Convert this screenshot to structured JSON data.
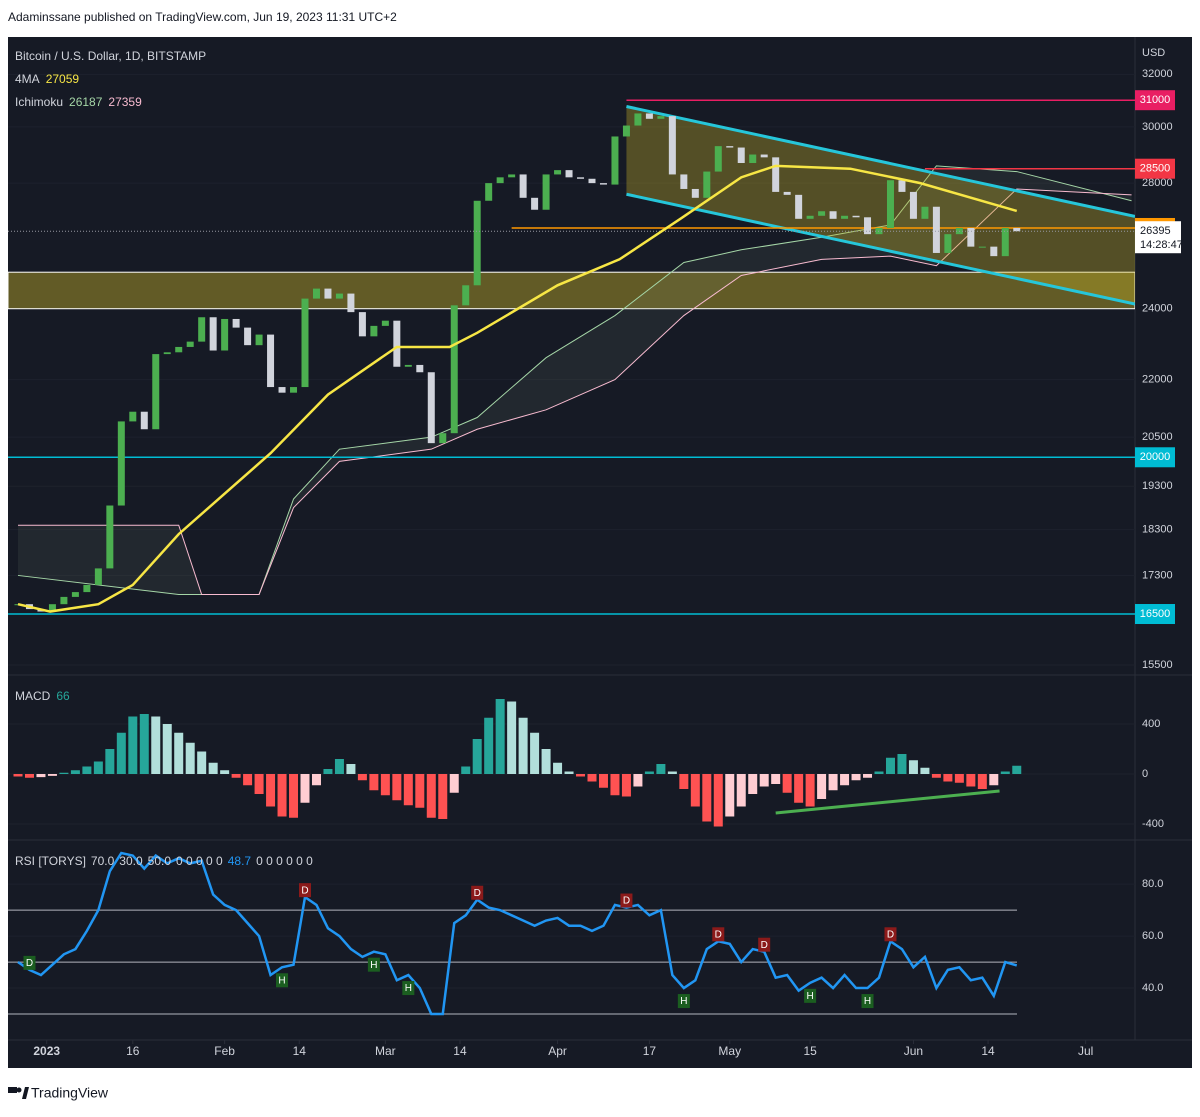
{
  "header": {
    "published": "Adaminssane published on TradingView.com, Jun 19, 2023 11:31 UTC+2"
  },
  "footer": {
    "brand": "TradingView"
  },
  "chart_data": [
    {
      "type": "candlestick",
      "title": "Bitcoin / U.S. Dollar, 1D, BITSTAMP",
      "currency": "USD",
      "countdown": "14:28:47",
      "log_scale": true,
      "ylim": [
        15310,
        33500
      ],
      "yticks": [
        32000,
        30000,
        28000,
        24000,
        22000,
        20500,
        19300,
        18300,
        17300,
        16500,
        15500
      ],
      "xlim": [
        -1.5,
        97.3
      ],
      "xticks": [
        {
          "value": 2.5,
          "label": "2023"
        },
        {
          "value": 10,
          "label": "16"
        },
        {
          "value": 18,
          "label": "Feb"
        },
        {
          "value": 24.5,
          "label": "14"
        },
        {
          "value": 32,
          "label": "Mar"
        },
        {
          "value": 38.5,
          "label": "14"
        },
        {
          "value": 47,
          "label": "Apr"
        },
        {
          "value": 55,
          "label": "17"
        },
        {
          "value": 62,
          "label": "May"
        },
        {
          "value": 69,
          "label": "15"
        },
        {
          "value": 78,
          "label": "Jun"
        },
        {
          "value": 84.5,
          "label": "14"
        },
        {
          "value": 93,
          "label": "Jul"
        }
      ],
      "up_color": "#4caf50",
      "down_color": "#d1d4dc",
      "close": [
        16700,
        16600,
        16550,
        16700,
        16850,
        16950,
        17100,
        17450,
        18850,
        20900,
        21150,
        20700,
        22700,
        22750,
        22900,
        23050,
        23750,
        22800,
        23700,
        23450,
        22950,
        23250,
        21800,
        21650,
        21800,
        24300,
        24600,
        24300,
        24450,
        23900,
        23200,
        23500,
        23650,
        22350,
        22400,
        22200,
        20350,
        20600,
        24100,
        24700,
        27400,
        28000,
        28200,
        28300,
        27500,
        27100,
        28300,
        28450,
        28200,
        28150,
        28000,
        27950,
        29650,
        30050,
        30500,
        30300,
        30400,
        28300,
        27800,
        27500,
        28400,
        29300,
        29250,
        28700,
        29000,
        28900,
        27700,
        27600,
        26800,
        26900,
        27050,
        26800,
        26900,
        26850,
        26300,
        26500,
        28100,
        27700,
        26800,
        27200,
        25700,
        26300,
        26500,
        25900,
        25900,
        25600,
        26500,
        26395
      ],
      "ma": {
        "name": "4MA",
        "color": "#f7e645",
        "x": [
          0,
          2.8,
          7,
          10,
          14,
          22,
          27,
          33,
          37.6,
          40,
          47,
          52.4,
          57.7,
          63,
          66,
          72.5,
          78.6,
          87
        ],
        "values": [
          16700,
          16550,
          16700,
          17100,
          18200,
          20100,
          21600,
          22900,
          22900,
          23300,
          24700,
          25500,
          26800,
          28200,
          28600,
          28500,
          28000,
          27059
        ]
      },
      "ichimoku": {
        "name": "Ichimoku",
        "value_a": 26187,
        "value_b": 27359,
        "color_a": "#a5d6a7",
        "color_b": "#f8bbd0",
        "x": [
          0,
          14,
          16,
          21,
          24,
          28,
          36,
          40,
          46,
          52,
          58,
          63,
          70,
          76,
          80,
          87,
          97
        ],
        "span_a": [
          17300,
          16900,
          16900,
          16900,
          19000,
          20200,
          20500,
          21000,
          22600,
          23800,
          25400,
          25800,
          26200,
          26600,
          28600,
          28400,
          27400
        ],
        "span_b": [
          18400,
          18400,
          16900,
          16900,
          18800,
          19900,
          20200,
          20700,
          21200,
          22000,
          23800,
          25000,
          25500,
          25600,
          25300,
          27800,
          27600
        ]
      },
      "levels": [
        {
          "value": 31000,
          "color": "#e91e63",
          "from": 53
        },
        {
          "value": 28500,
          "color": "#f23645",
          "from": 79
        },
        {
          "value": 26500,
          "color": "#ff9800",
          "from": 43
        },
        {
          "value": 20000,
          "color": "#00bcd4",
          "from": -1.5
        },
        {
          "value": 16500,
          "color": "#00bcd4",
          "from": -1.5
        }
      ],
      "zone": [
        24000,
        25100
      ],
      "channel": {
        "x": [
          53,
          97.3
        ],
        "top": [
          30760,
          26880
        ],
        "bottom": [
          27620,
          24140
        ]
      }
    },
    {
      "type": "bar",
      "title": "MACD",
      "ylim": [
        -528,
        792
      ],
      "yticks": [
        400,
        0,
        -400
      ],
      "colors": {
        "rise_up": "#26a69a",
        "fall_up": "#b2dfdb",
        "fall_down": "#ff5252",
        "rise_down": "#ffcdd2"
      },
      "values": [
        -20,
        -30,
        -25,
        -15,
        10,
        30,
        60,
        100,
        200,
        330,
        460,
        480,
        460,
        400,
        330,
        250,
        180,
        90,
        30,
        -30,
        -90,
        -160,
        -260,
        -340,
        -350,
        -230,
        -90,
        40,
        120,
        80,
        -50,
        -130,
        -170,
        -210,
        -250,
        -270,
        -350,
        -360,
        -150,
        60,
        280,
        450,
        600,
        580,
        450,
        330,
        200,
        90,
        20,
        -20,
        -60,
        -110,
        -170,
        -180,
        -100,
        20,
        80,
        20,
        -120,
        -260,
        -380,
        -420,
        -340,
        -260,
        -160,
        -100,
        -80,
        -150,
        -230,
        -260,
        -200,
        -130,
        -90,
        -50,
        -30,
        20,
        130,
        160,
        110,
        50,
        -30,
        -60,
        -70,
        -100,
        -120,
        -90,
        20,
        66
      ],
      "trendline": {
        "color": "#4caf50",
        "x": [
          66,
          85.5
        ],
        "values": [
          -312,
          -136
        ]
      }
    },
    {
      "type": "line",
      "title": "RSI [TORYS]",
      "color": "#2196f3",
      "ylim": [
        20,
        97
      ],
      "yticks": [
        {
          "value": 80,
          "label": "80.0"
        },
        {
          "value": 60,
          "label": "60.0"
        },
        {
          "value": 40,
          "label": "40.0"
        }
      ],
      "levels": [
        {
          "value": 70,
          "label": "70.0"
        },
        {
          "value": 30,
          "label": "30.0"
        },
        {
          "value": 50,
          "label": "50.0"
        }
      ],
      "params_a": "0 0 0 0 0",
      "params_b": "0 0 0 0 0 0",
      "values": [
        50,
        47,
        45,
        49,
        53,
        55,
        62,
        70,
        85,
        92,
        91,
        86,
        91,
        88,
        90,
        88,
        89,
        76,
        72,
        70,
        65,
        60,
        45,
        48,
        49,
        75,
        72,
        63,
        60,
        55,
        52,
        54,
        53,
        43,
        45,
        40,
        30,
        30,
        65,
        68,
        74,
        71,
        70,
        68,
        66,
        64,
        66,
        67,
        64,
        64,
        62,
        64,
        72,
        71,
        72,
        68,
        70,
        45,
        40,
        43,
        55,
        58,
        57,
        50,
        55,
        54,
        44,
        45,
        39,
        42,
        44,
        40,
        45,
        40,
        40,
        44,
        58,
        55,
        48,
        52,
        40,
        47,
        48,
        43,
        44,
        37,
        50,
        48.7
      ],
      "signals": [
        {
          "label": "D",
          "x": 1,
          "color": "#1b5e20"
        },
        {
          "label": "H",
          "x": 23,
          "color": "#1b5e20"
        },
        {
          "label": "D",
          "x": 25,
          "color": "#8b1a1a"
        },
        {
          "label": "H",
          "x": 31,
          "color": "#1b5e20"
        },
        {
          "label": "H",
          "x": 34,
          "color": "#1b5e20"
        },
        {
          "label": "D",
          "x": 40,
          "color": "#8b1a1a"
        },
        {
          "label": "D",
          "x": 53,
          "color": "#8b1a1a"
        },
        {
          "label": "H",
          "x": 58,
          "color": "#1b5e20"
        },
        {
          "label": "D",
          "x": 61,
          "color": "#8b1a1a"
        },
        {
          "label": "D",
          "x": 65,
          "color": "#8b1a1a"
        },
        {
          "label": "H",
          "x": 69,
          "color": "#1b5e20"
        },
        {
          "label": "H",
          "x": 74,
          "color": "#1b5e20"
        },
        {
          "label": "D",
          "x": 76,
          "color": "#8b1a1a"
        }
      ]
    }
  ]
}
